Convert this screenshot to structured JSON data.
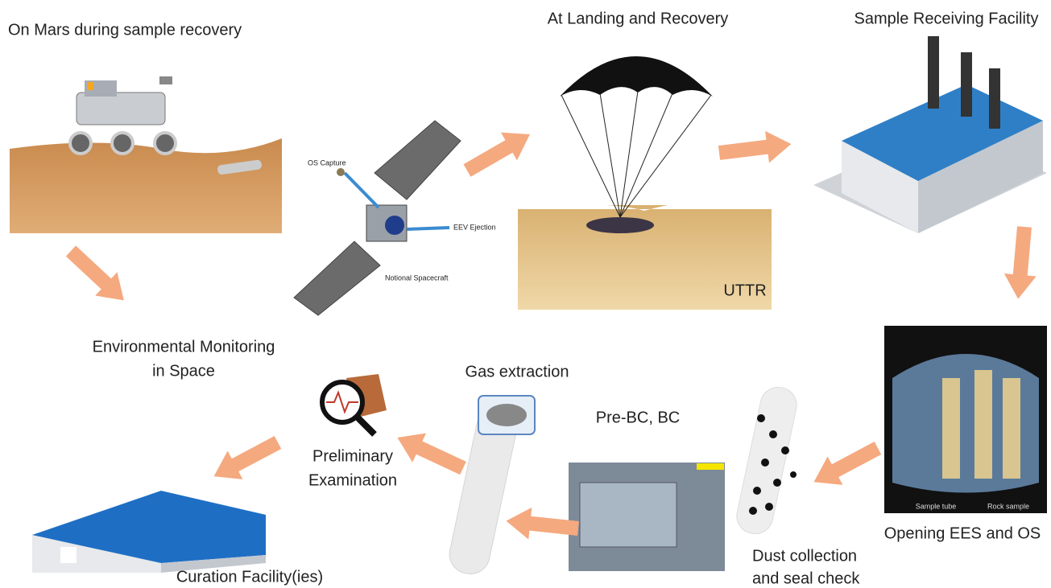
{
  "nodes": [
    {
      "lines": [
        "On Mars during sample recovery"
      ]
    },
    {
      "lines": [
        "At Landing and Recovery"
      ]
    },
    {
      "lines": [
        "Sample Receiving Facility"
      ]
    },
    {
      "lines": [
        "OS Capture",
        "EEV Ejection",
        "Notional Spacecraft"
      ]
    },
    {
      "lines": [
        "UTTR"
      ]
    },
    {
      "lines": [
        "Environmental Monitoring",
        "in Space"
      ]
    },
    {
      "lines": [
        "Gas extraction"
      ]
    },
    {
      "lines": [
        "Pre-BC, BC"
      ]
    },
    {
      "lines": [
        "Preliminary",
        "Examination"
      ]
    },
    {
      "lines": [
        "Opening EES and OS"
      ]
    },
    {
      "lines": [
        "Sample tube",
        "Rock sample"
      ]
    },
    {
      "lines": [
        "Dust collection",
        "and seal check"
      ]
    },
    {
      "lines": [
        "Curation Facility(ies)"
      ]
    }
  ]
}
